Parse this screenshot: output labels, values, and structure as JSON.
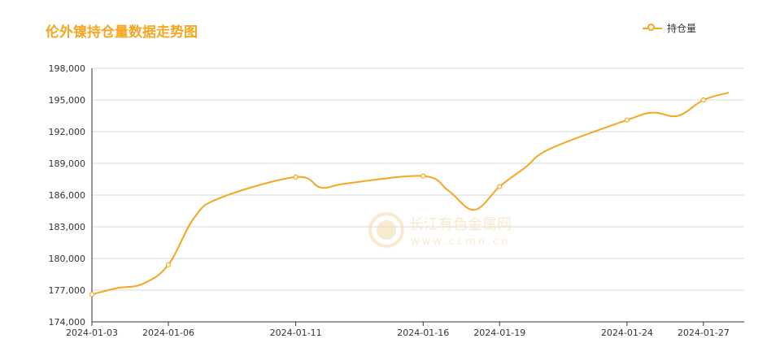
{
  "chart_data": {
    "type": "line",
    "title": "伦外镍持仓量数据走势图",
    "xlabel": "",
    "ylabel": "",
    "ylim": [
      174000,
      198000
    ],
    "y_ticks": [
      "198,000",
      "195,000",
      "192,000",
      "189,000",
      "186,000",
      "183,000",
      "180,000",
      "177,000",
      "174,000"
    ],
    "x_tick_labels": [
      "2024-01-03",
      "2024-01-06",
      "2024-01-11",
      "2024-01-16",
      "2024-01-19",
      "2024-01-24",
      "2024-01-27"
    ],
    "grid": true,
    "legend_position": "top-right",
    "series": [
      {
        "name": "持仓量",
        "color": "#f5a623",
        "x": [
          "2024-01-03",
          "2024-01-04",
          "2024-01-05",
          "2024-01-06",
          "2024-01-07",
          "2024-01-08",
          "2024-01-11",
          "2024-01-12",
          "2024-01-13",
          "2024-01-16",
          "2024-01-17",
          "2024-01-18",
          "2024-01-19",
          "2024-01-20",
          "2024-01-21",
          "2024-01-24",
          "2024-01-25",
          "2024-01-26",
          "2024-01-27",
          "2024-01-28"
        ],
        "values": [
          176600,
          177200,
          177600,
          179400,
          183800,
          185700,
          187700,
          186700,
          187100,
          187800,
          186400,
          184600,
          186800,
          188600,
          190400,
          193100,
          193800,
          193500,
          195000,
          195700
        ]
      }
    ]
  },
  "watermark": {
    "brand": "长江有色金属网",
    "url": "www.ccmn.cn"
  }
}
